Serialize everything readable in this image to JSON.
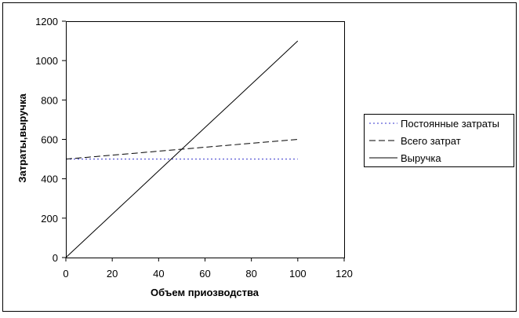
{
  "chart_data": {
    "type": "line",
    "title": "",
    "xlabel": "Объем приозводства",
    "ylabel": "Затраты,выручка",
    "xlim": [
      0,
      120
    ],
    "ylim": [
      0,
      1200
    ],
    "x_ticks": [
      "0",
      "20",
      "40",
      "60",
      "80",
      "100",
      "120"
    ],
    "y_ticks": [
      "0",
      "200",
      "400",
      "600",
      "800",
      "1000",
      "1200"
    ],
    "x_tick_values": [
      0,
      20,
      40,
      60,
      80,
      100,
      120
    ],
    "y_tick_values": [
      0,
      200,
      400,
      600,
      800,
      1000,
      1200
    ],
    "grid": false,
    "legend_position": "right",
    "series": [
      {
        "name": "Постоянные затраты",
        "style": "dotted",
        "color": "#3333cc",
        "x": [
          0,
          10,
          20,
          30,
          40,
          50,
          60,
          70,
          80,
          90,
          100
        ],
        "values": [
          500,
          500,
          500,
          500,
          500,
          500,
          500,
          500,
          500,
          500,
          500
        ]
      },
      {
        "name": "Всего затрат",
        "style": "dashed",
        "color": "#000000",
        "x": [
          0,
          10,
          20,
          30,
          40,
          50,
          60,
          70,
          80,
          90,
          100
        ],
        "values": [
          500,
          510,
          520,
          530,
          540,
          550,
          560,
          570,
          580,
          590,
          600
        ]
      },
      {
        "name": "Выручка",
        "style": "solid",
        "color": "#000000",
        "x": [
          0,
          10,
          20,
          30,
          40,
          50,
          60,
          70,
          80,
          90,
          100
        ],
        "values": [
          0,
          110,
          220,
          330,
          440,
          550,
          660,
          770,
          880,
          990,
          1100
        ]
      }
    ]
  }
}
